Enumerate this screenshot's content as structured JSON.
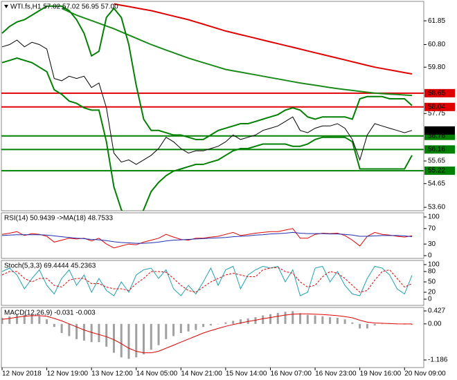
{
  "chart_data": [
    {
      "type": "line",
      "title": "WTI.fs,H1  57.02 57.02 56.95 57.00",
      "categories": [
        "12 Nov 2018",
        null,
        null,
        null,
        null,
        null,
        "12 Nov 19:00",
        null,
        null,
        null,
        null,
        null,
        "13 Nov 12:00",
        null,
        null,
        null,
        null,
        null,
        "14 Nov 05:00",
        null,
        null,
        null,
        null,
        null,
        "14 Nov 21:00",
        null,
        null,
        null,
        null,
        null,
        "15 Nov 14:00",
        null,
        null,
        null,
        null,
        null,
        "16 Nov 07:00",
        null,
        null,
        null,
        null,
        null,
        "16 Nov 23:00",
        null,
        null,
        null,
        null,
        null,
        "19 Nov 16:00",
        null,
        null,
        null,
        null,
        null,
        "20 Nov 09:00",
        null
      ],
      "ylim": [
        53.45,
        62.71
      ],
      "yticks": [
        61.85,
        {
          "value": 60.8,
          "label": "60.80"
        },
        {
          "value": 59.8,
          "label": "59.80"
        },
        57.75,
        55.65,
        54.65,
        {
          "value": 53.6,
          "label": "53.60"
        }
      ],
      "levels": [
        {
          "value": 58.65,
          "color": "#e00000"
        },
        {
          "value": 58.04,
          "color": "#e00000"
        },
        {
          "value": 56.76,
          "color": "#008000"
        },
        {
          "value": 56.16,
          "color": "#008000"
        },
        {
          "value": 55.22,
          "color": "#008000"
        }
      ],
      "current_price": {
        "value": 57,
        "label": "57.00"
      },
      "series": [
        {
          "color": "#e00000",
          "style": "thick",
          "values": [
            null,
            null,
            null,
            null,
            null,
            null,
            null,
            null,
            null,
            null,
            null,
            null,
            null,
            null,
            null,
            62.6,
            62.54,
            62.48,
            62.42,
            62.36,
            62.3,
            62.22,
            62.14,
            62.06,
            61.98,
            61.9,
            61.8,
            61.7,
            61.6,
            61.5,
            61.4,
            61.32,
            61.24,
            61.16,
            61.08,
            61.0,
            60.92,
            60.84,
            60.76,
            60.68,
            60.6,
            60.52,
            60.44,
            60.36,
            60.28,
            60.2,
            60.12,
            60.04,
            59.96,
            59.88,
            59.8,
            59.74,
            59.68,
            59.62,
            59.56,
            59.5
          ]
        },
        {
          "color": "#1a8a1a",
          "style": "thick",
          "values": [
            null,
            null,
            null,
            null,
            null,
            null,
            null,
            null,
            62.4,
            62.25,
            62.1,
            61.98,
            61.86,
            61.74,
            61.62,
            61.5,
            61.36,
            61.22,
            61.08,
            60.94,
            60.8,
            60.68,
            60.56,
            60.44,
            60.32,
            60.2,
            60.1,
            60.0,
            59.9,
            59.8,
            59.7,
            59.64,
            59.58,
            59.52,
            59.46,
            59.4,
            59.34,
            59.28,
            59.22,
            59.16,
            59.1,
            59.05,
            59.0,
            58.95,
            58.9,
            58.85,
            58.81,
            58.77,
            58.73,
            58.69,
            58.65,
            58.63,
            58.61,
            58.59,
            58.57,
            58.55
          ]
        },
        {
          "color": "#008000",
          "style": "thick",
          "values": [
            61.3,
            61.6,
            61.8,
            61.9,
            62.1,
            62.3,
            62.5,
            62.5,
            62.5,
            62.3,
            61.9,
            61.3,
            60.3,
            60.5,
            62.0,
            62.4,
            62.0,
            60.8,
            59.0,
            57.5,
            57.0,
            57.0,
            56.9,
            56.8,
            56.8,
            56.7,
            56.6,
            56.6,
            56.8,
            57.0,
            57.1,
            57.2,
            57.3,
            57.3,
            57.4,
            57.5,
            57.6,
            57.7,
            57.9,
            58.0,
            57.9,
            57.6,
            57.5,
            57.6,
            57.6,
            57.6,
            57.6,
            57.5,
            58.4,
            58.5,
            58.5,
            58.5,
            58.4,
            58.4,
            58.4,
            58.1
          ]
        },
        {
          "color": "#008000",
          "style": "thick",
          "values": [
            60.0,
            60.1,
            60.2,
            60.1,
            60.0,
            59.8,
            59.6,
            58.8,
            58.6,
            58.3,
            58.2,
            58.0,
            57.9,
            57.9,
            56.5,
            54.5,
            53.5,
            53.0,
            52.8,
            53.5,
            54.3,
            54.7,
            55.0,
            55.2,
            55.3,
            55.4,
            55.5,
            55.5,
            55.6,
            55.7,
            55.9,
            56.1,
            56.2,
            56.2,
            56.3,
            56.4,
            56.4,
            56.4,
            56.4,
            56.3,
            56.3,
            56.4,
            56.6,
            56.7,
            56.7,
            56.7,
            56.7,
            56.5,
            55.3,
            55.3,
            55.3,
            55.3,
            55.3,
            55.3,
            55.3,
            55.9
          ]
        },
        {
          "color": "#000000",
          "style": "line",
          "values": [
            60.7,
            60.8,
            61.0,
            60.7,
            60.9,
            60.8,
            60.6,
            59.3,
            59.2,
            59.4,
            59.3,
            59.4,
            58.9,
            59.1,
            58.0,
            56.0,
            55.6,
            55.7,
            55.5,
            55.7,
            55.9,
            56.2,
            56.7,
            56.5,
            56.2,
            56.0,
            56.1,
            56.1,
            56.2,
            56.3,
            56.5,
            56.8,
            56.6,
            56.7,
            56.8,
            57.0,
            57.1,
            57.2,
            57.4,
            57.6,
            57.0,
            56.9,
            57.1,
            57.2,
            57.2,
            57.3,
            57.1,
            56.6,
            55.7,
            56.8,
            57.3,
            57.2,
            57.1,
            57.0,
            56.9,
            57.0
          ]
        }
      ]
    },
    {
      "type": "line",
      "title": "RSI(14) 50.9439  ->MA(18) 48.7533",
      "ylim": [
        -7.1,
        110.7
      ],
      "yticks": [
        100,
        70,
        30,
        0
      ],
      "series": [
        {
          "color": "#e00000",
          "style": "line",
          "values": [
            55,
            58,
            62,
            52,
            57,
            55,
            50,
            35,
            40,
            45,
            43,
            45,
            38,
            45,
            30,
            20,
            25,
            30,
            28,
            35,
            40,
            45,
            55,
            48,
            42,
            40,
            45,
            45,
            48,
            50,
            55,
            60,
            52,
            55,
            58,
            60,
            62,
            62,
            66,
            70,
            45,
            45,
            55,
            58,
            57,
            58,
            52,
            40,
            25,
            50,
            60,
            55,
            53,
            50,
            48,
            51
          ]
        },
        {
          "color": "#1f2fb0",
          "style": "line",
          "values": [
            52,
            53,
            54,
            54,
            54,
            54,
            53,
            51,
            49,
            47,
            45,
            44,
            42,
            41,
            39,
            36,
            34,
            33,
            32,
            32,
            33,
            35,
            38,
            40,
            41,
            42,
            43,
            44,
            45,
            46,
            47,
            49,
            50,
            51,
            53,
            54,
            56,
            57,
            58,
            60,
            58,
            57,
            57,
            57,
            56,
            56,
            55,
            53,
            50,
            50,
            51,
            52,
            52,
            52,
            51,
            49
          ]
        }
      ]
    },
    {
      "type": "line",
      "title": "Stoch(5,3,3) 69.4444 45.2363",
      "ylim": [
        -18,
        112
      ],
      "yticks": [
        100,
        80,
        50,
        20,
        0
      ],
      "series": [
        {
          "color": "#20a0b0",
          "style": "line",
          "values": [
            80,
            90,
            70,
            30,
            60,
            85,
            40,
            15,
            60,
            85,
            40,
            70,
            20,
            60,
            25,
            10,
            50,
            20,
            70,
            85,
            90,
            60,
            85,
            30,
            10,
            40,
            15,
            50,
            90,
            40,
            85,
            95,
            30,
            70,
            85,
            95,
            90,
            95,
            50,
            85,
            10,
            20,
            90,
            95,
            50,
            80,
            40,
            15,
            10,
            60,
            95,
            90,
            70,
            30,
            15,
            69
          ]
        },
        {
          "color": "#e00000",
          "style": "dashed",
          "values": [
            70,
            80,
            80,
            60,
            50,
            60,
            60,
            40,
            35,
            55,
            60,
            60,
            45,
            45,
            35,
            30,
            30,
            25,
            45,
            60,
            80,
            80,
            78,
            60,
            40,
            25,
            20,
            35,
            50,
            60,
            70,
            75,
            70,
            65,
            65,
            85,
            90,
            92,
            80,
            75,
            50,
            35,
            40,
            65,
            80,
            75,
            60,
            40,
            20,
            25,
            55,
            80,
            85,
            60,
            35,
            45
          ]
        }
      ]
    },
    {
      "type": "bar",
      "title": "MACD(12,26,9) -0.031 -0.003",
      "ylim": [
        -1.436,
        0.541
      ],
      "yticks": [
        0.427,
        {
          "value": 0,
          "label": "0.00"
        },
        -1.186
      ],
      "series": [
        {
          "color": "#a0a0a0",
          "style": "histogram",
          "values": [
            0.2,
            0.25,
            0.3,
            0.3,
            0.3,
            0.25,
            0.15,
            -0.1,
            -0.3,
            -0.4,
            -0.5,
            -0.55,
            -0.6,
            -0.6,
            -0.75,
            -0.95,
            -1.1,
            -1.15,
            -1.1,
            -1.0,
            -0.85,
            -0.7,
            -0.5,
            -0.4,
            -0.3,
            -0.25,
            -0.2,
            -0.1,
            -0.05,
            0.0,
            0.05,
            0.1,
            0.15,
            0.18,
            0.22,
            0.28,
            0.32,
            0.36,
            0.4,
            0.42,
            0.35,
            0.3,
            0.28,
            0.25,
            0.22,
            0.2,
            0.15,
            0.05,
            -0.15,
            -0.15,
            -0.05,
            0.0,
            0.02,
            0.0,
            -0.02,
            -0.031
          ]
        },
        {
          "color": "#e00000",
          "style": "line",
          "values": [
            0.15,
            0.18,
            0.22,
            0.25,
            0.27,
            0.27,
            0.25,
            0.18,
            0.1,
            0.0,
            -0.1,
            -0.2,
            -0.28,
            -0.35,
            -0.42,
            -0.52,
            -0.65,
            -0.8,
            -0.9,
            -0.95,
            -0.95,
            -0.9,
            -0.8,
            -0.7,
            -0.6,
            -0.5,
            -0.4,
            -0.3,
            -0.22,
            -0.15,
            -0.08,
            -0.02,
            0.03,
            0.08,
            0.12,
            0.17,
            0.21,
            0.25,
            0.29,
            0.32,
            0.33,
            0.33,
            0.32,
            0.31,
            0.29,
            0.27,
            0.24,
            0.2,
            0.12,
            0.06,
            0.03,
            0.02,
            0.01,
            0.0,
            -0.001,
            -0.003
          ]
        }
      ]
    }
  ]
}
